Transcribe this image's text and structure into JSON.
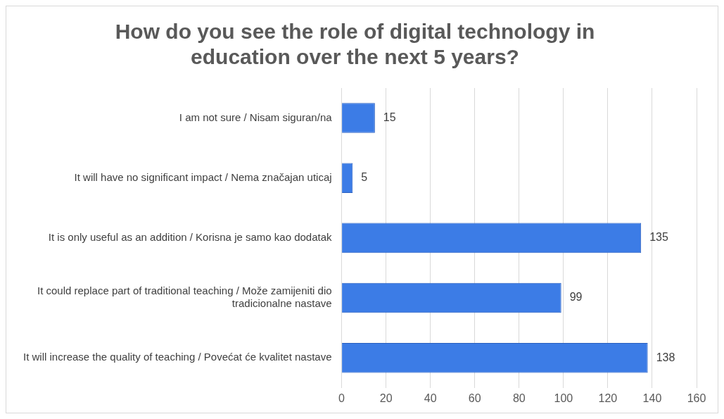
{
  "chart_data": {
    "type": "bar",
    "orientation": "horizontal",
    "title": "How do you see the role of digital technology in education over the next 5 years?",
    "categories": [
      "I am not sure / Nisam siguran/na",
      "It will have no significant impact / Nema značajan uticaj",
      "It is only useful as an addition / Korisna je samo kao dodatak",
      "It could replace part of traditional teaching / Može zamijeniti dio tradicionalne nastave",
      "It will increase the quality of teaching / Povećat će kvalitet nastave"
    ],
    "values": [
      15,
      5,
      135,
      99,
      138
    ],
    "color": "#3c7ce6",
    "xlim": [
      0,
      160
    ],
    "xticks": [
      0,
      20,
      40,
      60,
      80,
      100,
      120,
      140,
      160
    ],
    "grid": "x",
    "data_labels": true,
    "legend": false
  }
}
